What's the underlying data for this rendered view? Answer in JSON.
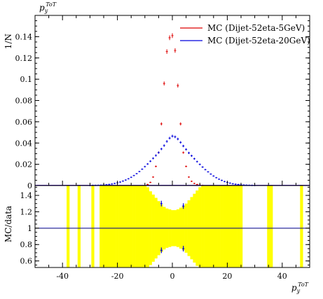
{
  "chart_data": [
    {
      "type": "scatter",
      "panel": "main",
      "xlabel": "p_y^ToT",
      "ylabel": "1/N",
      "top_label": "p_y^ToT",
      "xlim": [
        -50,
        50
      ],
      "ylim": [
        0,
        0.16
      ],
      "yticks": [
        0,
        0.02,
        0.04,
        0.06,
        0.08,
        0.1,
        0.12,
        0.14
      ],
      "ytick_labels": [
        "0",
        "0.02",
        "0.04",
        "0.06",
        "0.08",
        "0.1",
        "0.12",
        "0.14"
      ],
      "legend_position": "top-right",
      "series": [
        {
          "name": "MC (Dijet-52eta-5GeV)",
          "color": "#dd0000",
          "x": [
            -9,
            -8,
            -7,
            -6,
            -5,
            -4,
            -3,
            -2,
            -1,
            0,
            1,
            2,
            3,
            4,
            5,
            6,
            7,
            8,
            9,
            10,
            11
          ],
          "y": [
            0.001,
            0.003,
            0.008,
            0.018,
            0.031,
            0.058,
            0.096,
            0.126,
            0.139,
            0.141,
            0.127,
            0.094,
            0.058,
            0.031,
            0.018,
            0.008,
            0.004,
            0.002,
            0.001,
            0.0005,
            0.0002
          ]
        },
        {
          "name": "MC (Dijet-52eta-20GeV)",
          "color": "#0000dd",
          "x": [
            -30,
            -29,
            -28,
            -27,
            -26,
            -25,
            -24,
            -23,
            -22,
            -21,
            -20,
            -19,
            -18,
            -17,
            -16,
            -15,
            -14,
            -13,
            -12,
            -11,
            -10,
            -9,
            -8,
            -7,
            -6,
            -5,
            -4,
            -3,
            -2,
            -1,
            0,
            1,
            2,
            3,
            4,
            5,
            6,
            7,
            8,
            9,
            10,
            11,
            12,
            13,
            14,
            15,
            16,
            17,
            18,
            19,
            20,
            21,
            22,
            23,
            24,
            25,
            26,
            27,
            28,
            29,
            30
          ],
          "y": [
            0.0001,
            0.0002,
            0.0002,
            0.0003,
            0.0004,
            0.0006,
            0.0008,
            0.0011,
            0.0015,
            0.002,
            0.0026,
            0.0033,
            0.0042,
            0.0052,
            0.0064,
            0.0078,
            0.0094,
            0.0112,
            0.0132,
            0.0154,
            0.0178,
            0.0203,
            0.0229,
            0.0256,
            0.0283,
            0.031,
            0.0344,
            0.0376,
            0.0415,
            0.0446,
            0.0465,
            0.0458,
            0.0438,
            0.0406,
            0.0372,
            0.034,
            0.0307,
            0.028,
            0.0252,
            0.0225,
            0.0199,
            0.0174,
            0.015,
            0.0129,
            0.0108,
            0.009,
            0.0074,
            0.006,
            0.0049,
            0.0038,
            0.003,
            0.0023,
            0.0017,
            0.0013,
            0.001,
            0.0007,
            0.0005,
            0.0004,
            0.0003,
            0.0002,
            0.0001
          ]
        }
      ]
    },
    {
      "type": "scatter",
      "panel": "ratio",
      "xlabel": "p_y^ToT",
      "ylabel": "MC/data",
      "xlim": [
        -50,
        50
      ],
      "ylim": [
        0.52,
        1.52
      ],
      "xticks": [
        -40,
        -20,
        0,
        20,
        40
      ],
      "xtick_labels": [
        "-40",
        "-20",
        "0",
        "20",
        "40"
      ],
      "yticks": [
        0.6,
        0.8,
        1,
        1.2,
        1.4
      ],
      "ytick_labels": [
        "0.6",
        "0.8",
        "1",
        "1.2",
        "1.4"
      ],
      "reference_line": 1,
      "band_color": "#ffff00",
      "band": [
        {
          "x0": -38.5,
          "x1": -37.5,
          "lo": 0.52,
          "hi": 1.52
        },
        {
          "x0": -34.5,
          "x1": -33.5,
          "lo": 0.52,
          "hi": 1.52
        },
        {
          "x0": -29.5,
          "x1": -28.5,
          "lo": 0.52,
          "hi": 1.52
        },
        {
          "x0": -26.5,
          "x1": -25.5,
          "lo": 0.52,
          "hi": 1.52
        },
        {
          "x0": -25.5,
          "x1": -24.5,
          "lo": 0.52,
          "hi": 1.52
        },
        {
          "x0": -24.5,
          "x1": -23.5,
          "lo": 0.52,
          "hi": 1.52
        },
        {
          "x0": -23.5,
          "x1": -22.5,
          "lo": 0.52,
          "hi": 1.52
        },
        {
          "x0": -22.5,
          "x1": -21.5,
          "lo": 0.52,
          "hi": 1.52
        },
        {
          "x0": -21.5,
          "x1": -20.5,
          "lo": 0.52,
          "hi": 1.52
        },
        {
          "x0": -20.5,
          "x1": -19.5,
          "lo": 0.52,
          "hi": 1.52
        },
        {
          "x0": -19.5,
          "x1": -18.5,
          "lo": 0.52,
          "hi": 1.52
        },
        {
          "x0": -18.5,
          "x1": -17.5,
          "lo": 0.52,
          "hi": 1.52
        },
        {
          "x0": -17.5,
          "x1": -16.5,
          "lo": 0.52,
          "hi": 1.52
        },
        {
          "x0": -16.5,
          "x1": -15.5,
          "lo": 0.52,
          "hi": 1.52
        },
        {
          "x0": -15.5,
          "x1": -14.5,
          "lo": 0.52,
          "hi": 1.52
        },
        {
          "x0": -14.5,
          "x1": -13.5,
          "lo": 0.52,
          "hi": 1.52
        },
        {
          "x0": -13.5,
          "x1": -12.5,
          "lo": 0.52,
          "hi": 1.52
        },
        {
          "x0": -12.5,
          "x1": -11.5,
          "lo": 0.52,
          "hi": 1.52
        },
        {
          "x0": -11.5,
          "x1": -10.5,
          "lo": 0.52,
          "hi": 1.52
        },
        {
          "x0": -10.5,
          "x1": -9.5,
          "lo": 0.52,
          "hi": 1.52
        },
        {
          "x0": -9.5,
          "x1": -8.5,
          "lo": 0.52,
          "hi": 1.5
        },
        {
          "x0": -8.5,
          "x1": -7.5,
          "lo": 0.55,
          "hi": 1.45
        },
        {
          "x0": -7.5,
          "x1": -6.5,
          "lo": 0.59,
          "hi": 1.41
        },
        {
          "x0": -6.5,
          "x1": -5.5,
          "lo": 0.63,
          "hi": 1.37
        },
        {
          "x0": -5.5,
          "x1": -4.5,
          "lo": 0.67,
          "hi": 1.33
        },
        {
          "x0": -4.5,
          "x1": -3.5,
          "lo": 0.71,
          "hi": 1.29
        },
        {
          "x0": -3.5,
          "x1": -2.5,
          "lo": 0.74,
          "hi": 1.26
        },
        {
          "x0": -2.5,
          "x1": -1.5,
          "lo": 0.76,
          "hi": 1.24
        },
        {
          "x0": -1.5,
          "x1": -0.5,
          "lo": 0.77,
          "hi": 1.23
        },
        {
          "x0": -0.5,
          "x1": 0.5,
          "lo": 0.78,
          "hi": 1.22
        },
        {
          "x0": 0.5,
          "x1": 1.5,
          "lo": 0.78,
          "hi": 1.22
        },
        {
          "x0": 1.5,
          "x1": 2.5,
          "lo": 0.77,
          "hi": 1.23
        },
        {
          "x0": 2.5,
          "x1": 3.5,
          "lo": 0.75,
          "hi": 1.25
        },
        {
          "x0": 3.5,
          "x1": 4.5,
          "lo": 0.73,
          "hi": 1.27
        },
        {
          "x0": 4.5,
          "x1": 5.5,
          "lo": 0.7,
          "hi": 1.3
        },
        {
          "x0": 5.5,
          "x1": 6.5,
          "lo": 0.66,
          "hi": 1.34
        },
        {
          "x0": 6.5,
          "x1": 7.5,
          "lo": 0.62,
          "hi": 1.38
        },
        {
          "x0": 7.5,
          "x1": 8.5,
          "lo": 0.58,
          "hi": 1.42
        },
        {
          "x0": 8.5,
          "x1": 9.5,
          "lo": 0.54,
          "hi": 1.46
        },
        {
          "x0": 9.5,
          "x1": 10.5,
          "lo": 0.52,
          "hi": 1.5
        },
        {
          "x0": 10.5,
          "x1": 11.5,
          "lo": 0.52,
          "hi": 1.52
        },
        {
          "x0": 11.5,
          "x1": 12.5,
          "lo": 0.52,
          "hi": 1.52
        },
        {
          "x0": 12.5,
          "x1": 13.5,
          "lo": 0.52,
          "hi": 1.52
        },
        {
          "x0": 13.5,
          "x1": 14.5,
          "lo": 0.52,
          "hi": 1.52
        },
        {
          "x0": 14.5,
          "x1": 15.5,
          "lo": 0.52,
          "hi": 1.52
        },
        {
          "x0": 15.5,
          "x1": 16.5,
          "lo": 0.52,
          "hi": 1.52
        },
        {
          "x0": 16.5,
          "x1": 17.5,
          "lo": 0.52,
          "hi": 1.52
        },
        {
          "x0": 17.5,
          "x1": 18.5,
          "lo": 0.52,
          "hi": 1.52
        },
        {
          "x0": 18.5,
          "x1": 19.5,
          "lo": 0.52,
          "hi": 1.52
        },
        {
          "x0": 19.5,
          "x1": 20.5,
          "lo": 0.52,
          "hi": 1.52
        },
        {
          "x0": 20.5,
          "x1": 21.5,
          "lo": 0.52,
          "hi": 1.52
        },
        {
          "x0": 21.5,
          "x1": 22.5,
          "lo": 0.52,
          "hi": 1.52
        },
        {
          "x0": 22.5,
          "x1": 23.5,
          "lo": 0.52,
          "hi": 1.52
        },
        {
          "x0": 23.5,
          "x1": 24.5,
          "lo": 0.52,
          "hi": 1.52
        },
        {
          "x0": 24.5,
          "x1": 25.5,
          "lo": 0.52,
          "hi": 1.52
        },
        {
          "x0": 34.5,
          "x1": 35.5,
          "lo": 0.52,
          "hi": 1.52
        },
        {
          "x0": 35.5,
          "x1": 36.5,
          "lo": 0.52,
          "hi": 1.52
        },
        {
          "x0": 46.5,
          "x1": 47.5,
          "lo": 0.52,
          "hi": 1.52
        }
      ],
      "series": [
        {
          "name": "MC (Dijet-52eta-5GeV)",
          "color": "#0000dd",
          "x": [
            -4,
            -4,
            4,
            4
          ],
          "y": [
            1.3,
            0.73,
            1.27,
            0.75
          ]
        }
      ]
    }
  ]
}
